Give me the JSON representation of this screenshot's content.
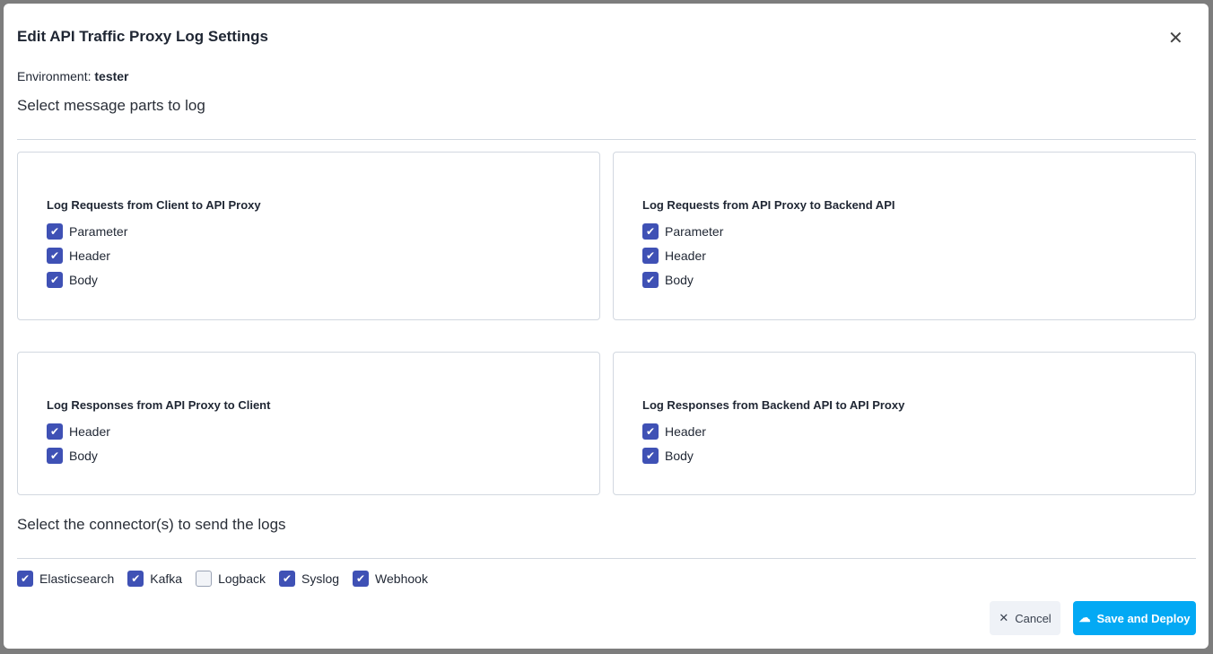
{
  "dialog": {
    "title": "Edit API Traffic Proxy Log Settings",
    "environment_label": "Environment:",
    "environment_value": "tester",
    "section1": "Select message parts to log",
    "section2": "Select the connector(s) to send the logs"
  },
  "cards": [
    {
      "title": "Log Requests from Client to API Proxy",
      "items": [
        {
          "label": "Parameter",
          "checked": true
        },
        {
          "label": "Header",
          "checked": true
        },
        {
          "label": "Body",
          "checked": true
        }
      ]
    },
    {
      "title": "Log Requests from API Proxy to Backend API",
      "items": [
        {
          "label": "Parameter",
          "checked": true
        },
        {
          "label": "Header",
          "checked": true
        },
        {
          "label": "Body",
          "checked": true
        }
      ]
    },
    {
      "title": "Log Responses from API Proxy to Client",
      "items": [
        {
          "label": "Header",
          "checked": true
        },
        {
          "label": "Body",
          "checked": true
        }
      ]
    },
    {
      "title": "Log Responses from Backend API to API Proxy",
      "items": [
        {
          "label": "Header",
          "checked": true
        },
        {
          "label": "Body",
          "checked": true
        }
      ]
    }
  ],
  "connectors": [
    {
      "label": "Elasticsearch",
      "checked": true
    },
    {
      "label": "Kafka",
      "checked": true
    },
    {
      "label": "Logback",
      "checked": false
    },
    {
      "label": "Syslog",
      "checked": true
    },
    {
      "label": "Webhook",
      "checked": true
    }
  ],
  "buttons": {
    "cancel": "Cancel",
    "save": "Save and Deploy"
  },
  "colors": {
    "primary": "#03a9f4",
    "checkbox": "#3f51b5"
  }
}
